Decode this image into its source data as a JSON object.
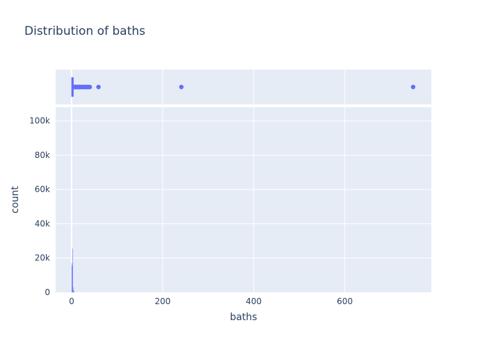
{
  "chart_data": {
    "type": "histogram",
    "title": "Distribution of baths",
    "xlabel": "baths",
    "ylabel": "count",
    "xlim": [
      -35,
      790
    ],
    "ylim": [
      0,
      108000
    ],
    "x_ticks": [
      0,
      200,
      400,
      600
    ],
    "x_tick_labels": [
      "0",
      "200",
      "400",
      "600"
    ],
    "y_ticks": [
      0,
      20000,
      40000,
      60000,
      80000,
      100000
    ],
    "y_tick_labels": [
      "0",
      "20k",
      "40k",
      "60k",
      "80k",
      "100k"
    ],
    "grid": true,
    "bar_color": "#636efa",
    "bins": [
      {
        "x0": 0,
        "x1": 1,
        "count": 17000
      },
      {
        "x0": 1,
        "x1": 2,
        "count": 15500
      },
      {
        "x0": 2,
        "x1": 3,
        "count": 25500
      },
      {
        "x0": 3,
        "x1": 4,
        "count": 3000
      },
      {
        "x0": 4,
        "x1": 5,
        "count": 1200
      },
      {
        "x0": 5,
        "x1": 6,
        "count": 600
      }
    ],
    "marginal": {
      "type": "box",
      "outliers": [
        5,
        7,
        8,
        9,
        10,
        11,
        12,
        13,
        14,
        15,
        16,
        17,
        18,
        19,
        20,
        22,
        24,
        26,
        28,
        30,
        32,
        34,
        36,
        38,
        40,
        59,
        241,
        750
      ]
    }
  },
  "colors": {
    "plot_bg": "#e5ecf6",
    "grid": "#ffffff",
    "text": "#2a3f5f",
    "series": "#636efa"
  }
}
